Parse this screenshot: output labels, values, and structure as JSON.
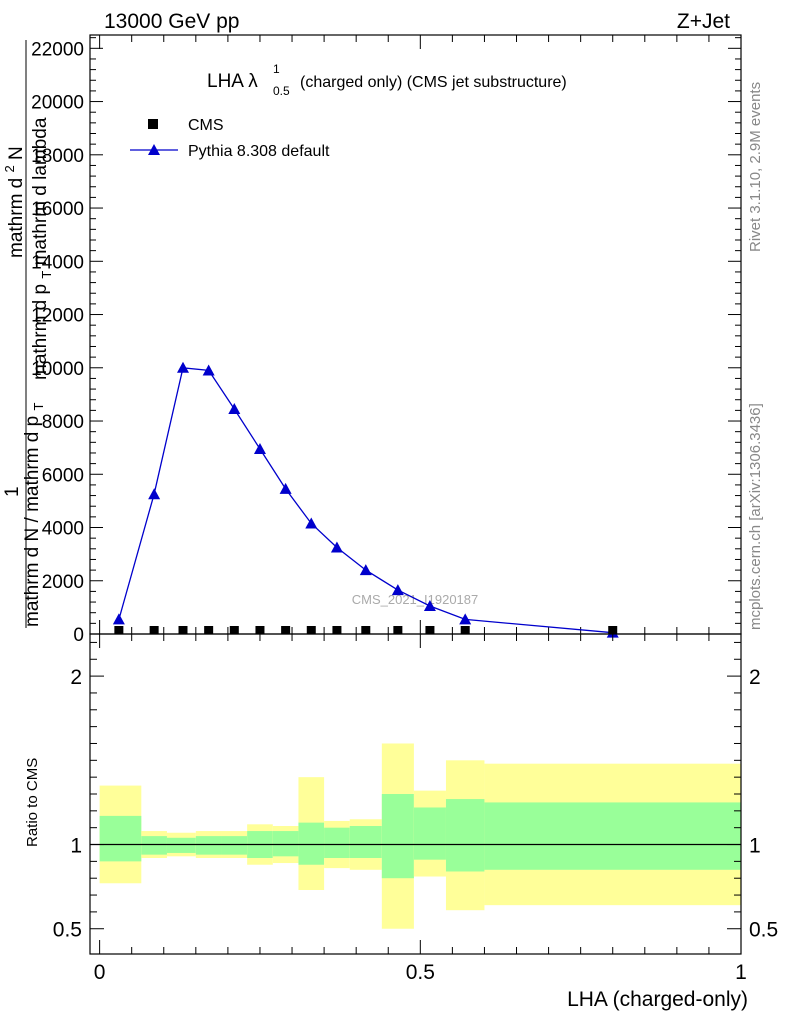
{
  "header": {
    "left": "13000 GeV pp",
    "right": "Z+Jet"
  },
  "side_labels": {
    "rivet": "Rivet 3.1.10,  2.9M events",
    "mcplots": "mcplots.cern.ch [arXiv:1306.3436]"
  },
  "watermark": "CMS_2021_I1920187",
  "chart_data": [
    {
      "type": "line",
      "title_main": "LHA λ",
      "title_sup": "1",
      "title_sub": "0.5",
      "title_rest": "(charged only) (CMS jet substructure)",
      "ylabel_top_num": "mathrm d",
      "ylabel_top_sup": "2",
      "ylabel_top_num2": "N",
      "ylabel_top_den": "mathrm d p",
      "ylabel_top_den_sub": "T",
      "ylabel_top_den2": " mathrm d lambda",
      "ylabel_bottom_num": "1",
      "ylabel_bottom_den": "mathrm d N / mathrm d p",
      "ylabel_bottom_den_sub": "T",
      "ylim": [
        0,
        22500
      ],
      "yticks": [
        {
          "value": 0,
          "label": "0"
        },
        {
          "value": 2000,
          "label": "2000"
        },
        {
          "value": 4000,
          "label": "4000"
        },
        {
          "value": 6000,
          "label": "6000"
        },
        {
          "value": 8000,
          "label": "8000"
        },
        {
          "value": 10000,
          "label": "10000"
        },
        {
          "value": 12000,
          "label": "12000"
        },
        {
          "value": 14000,
          "label": "14000"
        },
        {
          "value": 16000,
          "label": "16000"
        },
        {
          "value": 18000,
          "label": "18000"
        },
        {
          "value": 20000,
          "label": "20000"
        },
        {
          "value": 22000,
          "label": "22000"
        }
      ],
      "xlim": [
        -0.015,
        1.0
      ],
      "legend": [
        {
          "name": "CMS",
          "marker": "square",
          "color": "#000000"
        },
        {
          "name": "Pythia 8.308 default",
          "marker": "triangle",
          "color": "#0000cc"
        }
      ],
      "series": [
        {
          "name": "CMS",
          "x": [
            0.03,
            0.085,
            0.13,
            0.17,
            0.21,
            0.25,
            0.29,
            0.33,
            0.37,
            0.415,
            0.465,
            0.515,
            0.57,
            0.8
          ],
          "y": [
            0,
            0,
            0,
            0,
            0,
            0,
            0,
            0,
            0,
            0,
            0,
            0,
            0,
            0
          ]
        },
        {
          "name": "Pythia 8.308 default",
          "x": [
            0.03,
            0.085,
            0.13,
            0.17,
            0.21,
            0.25,
            0.29,
            0.33,
            0.37,
            0.415,
            0.465,
            0.515,
            0.57,
            0.8
          ],
          "y": [
            550,
            5250,
            10000,
            9900,
            8450,
            6950,
            5450,
            4150,
            3250,
            2400,
            1650,
            1050,
            550,
            50
          ]
        }
      ]
    },
    {
      "type": "bar",
      "ylabel": "Ratio to CMS",
      "xlabel": "LHA (charged-only)",
      "ylim": [
        0.35,
        2.25
      ],
      "yticks": [
        {
          "value": 0.5,
          "label": "0.5"
        },
        {
          "value": 1,
          "label": "1"
        },
        {
          "value": 2,
          "label": "2"
        }
      ],
      "xlim": [
        -0.015,
        1.0
      ],
      "xticks": [
        {
          "value": 0,
          "label": "0"
        },
        {
          "value": 0.5,
          "label": "0.5"
        },
        {
          "value": 1,
          "label": "1"
        }
      ],
      "bin_edges": [
        0.0,
        0.065,
        0.105,
        0.15,
        0.19,
        0.23,
        0.27,
        0.31,
        0.35,
        0.39,
        0.44,
        0.49,
        0.54,
        0.6,
        1.0
      ],
      "green_band": {
        "low": [
          0.9,
          0.94,
          0.95,
          0.94,
          0.94,
          0.92,
          0.93,
          0.88,
          0.92,
          0.92,
          0.8,
          0.91,
          0.84,
          0.85
        ],
        "high": [
          1.17,
          1.05,
          1.04,
          1.05,
          1.05,
          1.08,
          1.08,
          1.13,
          1.1,
          1.11,
          1.3,
          1.22,
          1.27,
          1.25
        ]
      },
      "yellow_band": {
        "low": [
          0.77,
          0.92,
          0.93,
          0.92,
          0.92,
          0.88,
          0.89,
          0.73,
          0.86,
          0.85,
          0.5,
          0.81,
          0.61,
          0.64
        ],
        "high": [
          1.35,
          1.08,
          1.07,
          1.08,
          1.08,
          1.12,
          1.11,
          1.4,
          1.14,
          1.15,
          1.6,
          1.32,
          1.5,
          1.48
        ]
      },
      "reference_line": 1
    }
  ]
}
